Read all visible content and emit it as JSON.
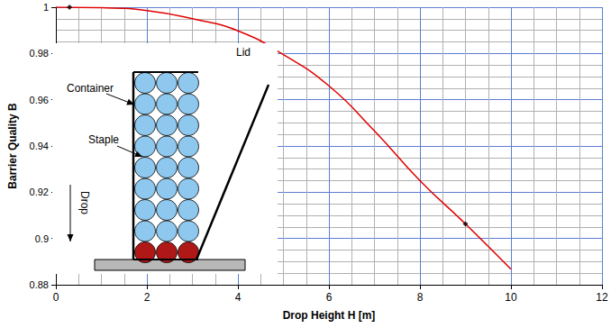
{
  "chart_data": {
    "type": "line",
    "x_label": "Drop Height H [m]",
    "y_label": "Barrier Quality B",
    "xlim": [
      0,
      12
    ],
    "xticks": [
      0,
      2,
      4,
      6,
      8,
      10,
      12
    ],
    "ylim": [
      0.88,
      1
    ],
    "yticks": [
      0.88,
      0.9,
      0.92,
      0.94,
      0.96,
      0.98,
      1
    ],
    "grid": true,
    "series": [
      {
        "type": "line",
        "color": "#e00000",
        "line_style": "solid",
        "x": [
          0,
          1,
          2,
          3,
          4,
          5,
          6,
          7,
          8,
          9,
          10
        ],
        "values": [
          1.0,
          0.9998,
          0.9985,
          0.995,
          0.9898,
          0.9795,
          0.966,
          0.9465,
          0.925,
          0.9063,
          0.8867
        ]
      },
      {
        "type": "scatter",
        "color": "#000000",
        "marker": "diamond",
        "x": [
          0.3,
          9
        ],
        "values": [
          1.0,
          0.9063
        ]
      }
    ],
    "annotations": [
      "Container",
      "Staple",
      "Lid",
      "Drop"
    ]
  }
}
